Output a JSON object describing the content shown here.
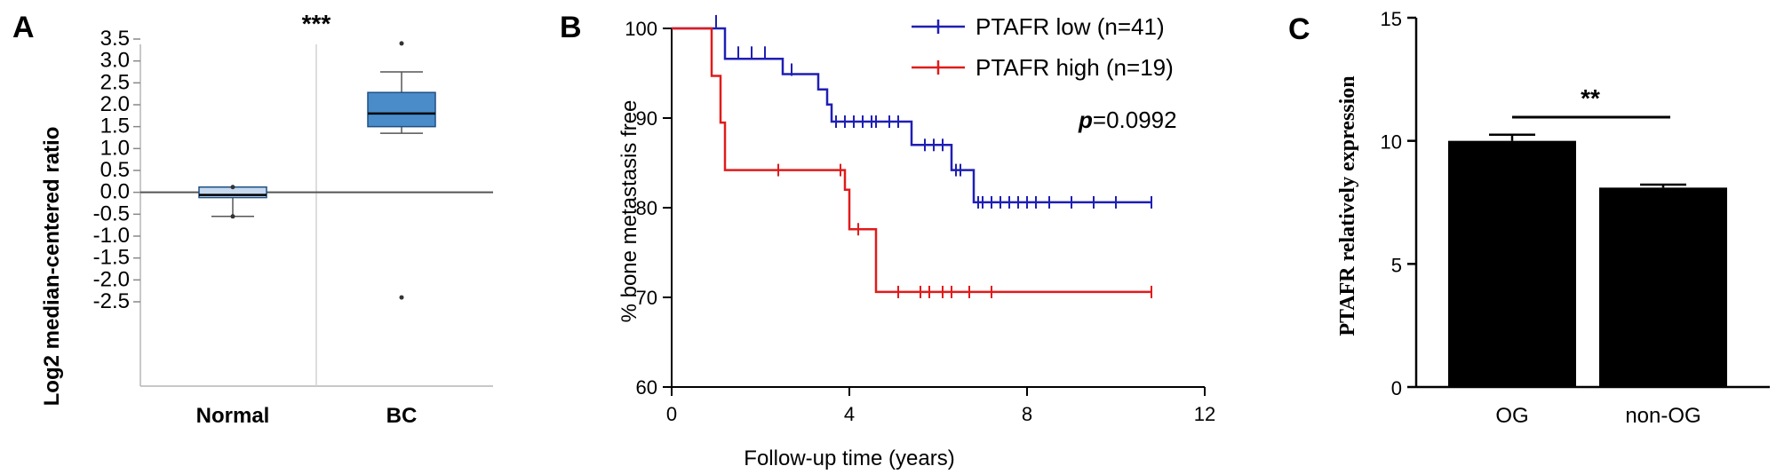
{
  "chart_data": [
    {
      "panel": "A",
      "type": "box",
      "ylabel": "Log2 median-centered ratio",
      "ylim": [
        -2.5,
        3.5
      ],
      "yticks": [
        "3.5",
        "3.0",
        "2.5",
        "2.0",
        "1.5",
        "1.0",
        "0.5",
        "0.0",
        "-0.5",
        "-1.0",
        "-1.5",
        "-2.0",
        "-2.5"
      ],
      "categories": [
        "Normal",
        "BC"
      ],
      "boxes": [
        {
          "name": "Normal",
          "whisker_low": -0.55,
          "q1": -0.12,
          "median": -0.06,
          "q3": 0.12,
          "whisker_high": 0.12,
          "outliers": [
            0.12,
            -0.55
          ]
        },
        {
          "name": "BC",
          "whisker_low": 1.35,
          "q1": 1.5,
          "median": 1.8,
          "q3": 2.28,
          "whisker_high": 2.75,
          "outliers": [
            3.4,
            -2.4
          ]
        }
      ],
      "significance": "***",
      "colors": {
        "normal_fill": "#c6d9ef",
        "bc_fill": "#4a8cc9",
        "stroke": "#1f4f82"
      }
    },
    {
      "panel": "B",
      "type": "line",
      "xlabel": "Follow-up time (years)",
      "ylabel": "% bone metastasis free",
      "xlim": [
        0,
        12
      ],
      "ylim": [
        60,
        100
      ],
      "xticks": [
        "0",
        "4",
        "8",
        "12"
      ],
      "yticks": [
        "100",
        "90",
        "80",
        "70",
        "60"
      ],
      "series": [
        {
          "name": "PTAFR low (n=41)",
          "color": "#1f1fb4",
          "steps": [
            [
              0,
              100
            ],
            [
              1.2,
              100
            ],
            [
              1.2,
              96.6
            ],
            [
              2.5,
              96.6
            ],
            [
              2.5,
              94.9
            ],
            [
              3.3,
              94.9
            ],
            [
              3.3,
              93.2
            ],
            [
              3.5,
              93.2
            ],
            [
              3.5,
              91.5
            ],
            [
              3.6,
              91.5
            ],
            [
              3.6,
              89.6
            ],
            [
              5.4,
              89.6
            ],
            [
              5.4,
              87
            ],
            [
              6.3,
              87
            ],
            [
              6.3,
              84.2
            ],
            [
              6.8,
              84.2
            ],
            [
              6.8,
              80.6
            ],
            [
              10.8,
              80.6
            ]
          ],
          "censored": [
            [
              1.0,
              100.8
            ],
            [
              1.5,
              97.3
            ],
            [
              1.8,
              97.3
            ],
            [
              2.1,
              97.3
            ],
            [
              2.7,
              95.4
            ],
            [
              3.7,
              89.6
            ],
            [
              3.9,
              89.6
            ],
            [
              4.1,
              89.6
            ],
            [
              4.3,
              89.6
            ],
            [
              4.5,
              89.6
            ],
            [
              4.6,
              89.6
            ],
            [
              4.9,
              89.6
            ],
            [
              5.1,
              89.6
            ],
            [
              5.7,
              87
            ],
            [
              5.9,
              87
            ],
            [
              6.1,
              87
            ],
            [
              6.4,
              84.2
            ],
            [
              6.5,
              84.2
            ],
            [
              6.9,
              80.6
            ],
            [
              7.0,
              80.6
            ],
            [
              7.2,
              80.6
            ],
            [
              7.4,
              80.6
            ],
            [
              7.6,
              80.6
            ],
            [
              7.8,
              80.6
            ],
            [
              8.0,
              80.6
            ],
            [
              8.2,
              80.6
            ],
            [
              8.5,
              80.6
            ],
            [
              9.0,
              80.6
            ],
            [
              9.5,
              80.6
            ],
            [
              10.0,
              80.6
            ],
            [
              10.8,
              80.6
            ]
          ]
        },
        {
          "name": "PTAFR high (n=19)",
          "color": "#e01b1b",
          "steps": [
            [
              0,
              100
            ],
            [
              0.9,
              100
            ],
            [
              0.9,
              94.7
            ],
            [
              1.1,
              94.7
            ],
            [
              1.1,
              89.5
            ],
            [
              1.2,
              89.5
            ],
            [
              1.2,
              84.2
            ],
            [
              3.9,
              84.2
            ],
            [
              3.9,
              82
            ],
            [
              4.0,
              82
            ],
            [
              4.0,
              77.6
            ],
            [
              4.6,
              77.6
            ],
            [
              4.6,
              70.6
            ],
            [
              10.8,
              70.6
            ]
          ],
          "censored": [
            [
              2.4,
              84.2
            ],
            [
              3.8,
              84.2
            ],
            [
              4.2,
              77.6
            ],
            [
              5.1,
              70.6
            ],
            [
              5.6,
              70.6
            ],
            [
              5.8,
              70.6
            ],
            [
              6.1,
              70.6
            ],
            [
              6.3,
              70.6
            ],
            [
              6.7,
              70.6
            ],
            [
              7.2,
              70.6
            ],
            [
              10.8,
              70.6
            ]
          ]
        }
      ],
      "annotation_p_italic": "p",
      "annotation_p_value": "=0.0992"
    },
    {
      "panel": "C",
      "type": "bar",
      "ylabel": "PTAFR relatively expression",
      "ylim": [
        0,
        15
      ],
      "yticks": [
        "15",
        "10",
        "5",
        "0"
      ],
      "categories": [
        "OG",
        "non-OG"
      ],
      "values": [
        10.0,
        8.1
      ],
      "errors": [
        0.25,
        0.12
      ],
      "significance": "**",
      "colors": {
        "bar": "#000000"
      }
    }
  ]
}
